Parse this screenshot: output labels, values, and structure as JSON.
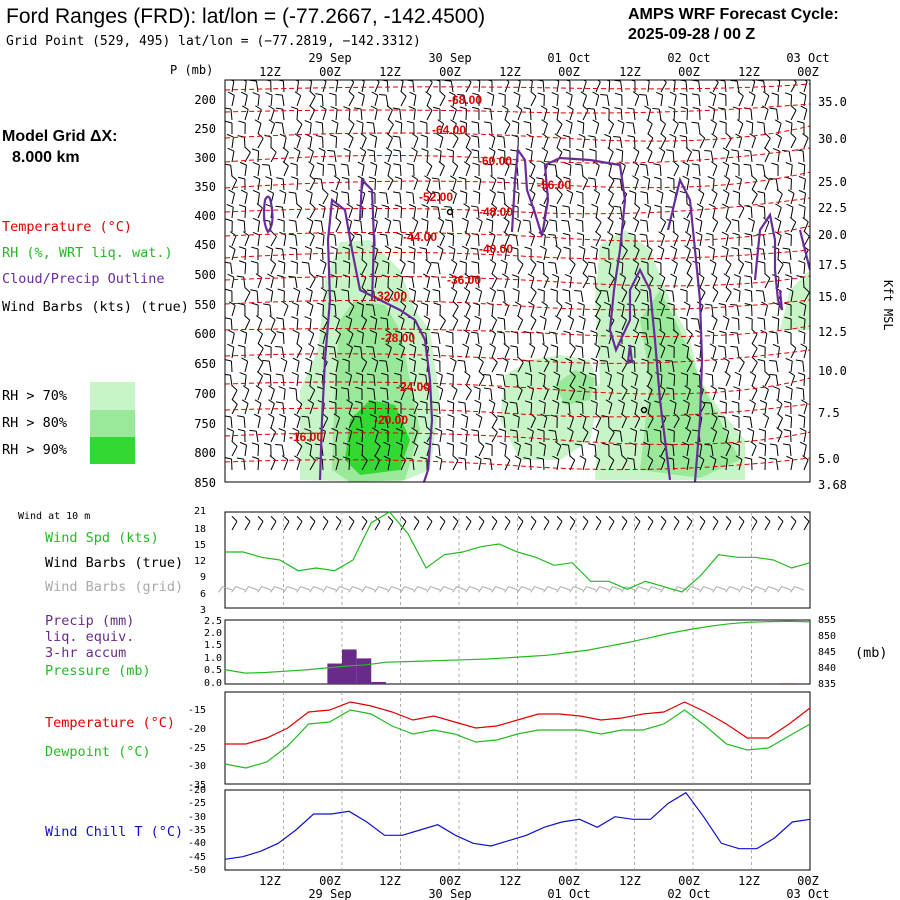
{
  "header": {
    "title": "Ford Ranges (FRD):  lat/lon = (-77.2667, -142.4500)",
    "subtitle": "Grid Point (529, 495) lat/lon = (−77.2819, −142.3312)",
    "cycle_line1": "AMPS WRF Forecast Cycle:",
    "cycle_line2": "2025-09-28 / 00  Z"
  },
  "side": {
    "model_grid_line1": "Model Grid ΔX:",
    "model_grid_line2": "8.000 km",
    "legend_temperature": "Temperature (°C)",
    "legend_rh": "RH (%, WRT liq. wat.)",
    "legend_cloud": "Cloud/Precip Outline",
    "legend_wind": "Wind Barbs (kts) (true)",
    "rh_levels": [
      "RH > 70%",
      "RH > 80%",
      "RH > 90%"
    ],
    "wind10m": "Wind at 10 m",
    "wind_spd": "Wind Spd (kts)",
    "wind_barbs_true": "Wind Barbs (true)",
    "wind_barbs_grid": "Wind Barbs (grid)",
    "precip_lines": [
      "Precip (mm)",
      "liq. equiv.",
      "3-hr accum"
    ],
    "pressure": "Pressure (mb)",
    "temperature": "Temperature (°C)",
    "dewpoint": "Dewpoint (°C)",
    "windchill": "Wind Chill T (°C)",
    "pressure_unit_right": "(mb)",
    "kft_msl": "Kft MSL"
  },
  "colors": {
    "temperature": "#e00000",
    "rh70": "#c8f5c8",
    "rh80": "#9ae89a",
    "rh90": "#33d833",
    "cloud": "#6a2c9a",
    "wind_speed": "#22bb22",
    "precip": "#6a2a8a",
    "pressure": "#22bb22",
    "dewpoint": "#22bb22",
    "windchill": "#1010cc",
    "grid_barbs": "#aaaaaa"
  },
  "time_axis": {
    "hour_labels": [
      "12Z",
      "00Z",
      "12Z",
      "00Z",
      "12Z",
      "00Z",
      "12Z",
      "00Z",
      "12Z",
      "00Z"
    ],
    "date_labels": [
      "29 Sep",
      "30 Sep",
      "01 Oct",
      "02 Oct",
      "03 Oct"
    ],
    "p_label": "P (mb)"
  },
  "chart_data": [
    {
      "type": "heatmap",
      "yaxis_pressure_ticks": [
        "200",
        "250",
        "300",
        "350",
        "400",
        "450",
        "500",
        "550",
        "600",
        "650",
        "700",
        "750",
        "800",
        "850"
      ],
      "yaxis_height_ticks": [
        "35.0",
        "30.0",
        "25.0",
        "22.5",
        "20.0",
        "17.5",
        "15.0",
        "12.5",
        "10.0",
        "7.5",
        "5.0",
        "3.68"
      ],
      "isotherm_labels": [
        "-68.00",
        "-64.00",
        "-60.00",
        "-56.00",
        "-52.00",
        "-48.00",
        "-44.00",
        "-40.00",
        "-36.00",
        "-32.00",
        "-28.00",
        "-24.00",
        "-20.00",
        "-16.00"
      ]
    },
    {
      "type": "line",
      "series": [
        {
          "name": "Wind Spd (kts)",
          "values": [
            13.5,
            13.5,
            12.5,
            12,
            10,
            10.5,
            10,
            12,
            19,
            21,
            17,
            10.5,
            13,
            13.5,
            14.5,
            15,
            13.5,
            12.5,
            11,
            11.5,
            8,
            8,
            6.5,
            8,
            7,
            6,
            9,
            13,
            12.5,
            12.5,
            12,
            10.5,
            11.5
          ]
        }
      ],
      "yticks": [
        "21",
        "18",
        "15",
        "12",
        "9",
        "6",
        "3"
      ],
      "ylim": [
        3,
        21
      ]
    },
    {
      "type": "bar",
      "series": [
        {
          "name": "Precip (mm)",
          "values": [
            0,
            0,
            0,
            0,
            0,
            0,
            0,
            0,
            0,
            0,
            0,
            0,
            0,
            0,
            0,
            0,
            0,
            0,
            0,
            0,
            0,
            0,
            0,
            0,
            0,
            0,
            0
          ]
        }
      ],
      "precip_bars": [
        {
          "hour": 22.5,
          "value": 0.8
        },
        {
          "hour": 25.5,
          "value": 1.35
        },
        {
          "hour": 28.5,
          "value": 1.0
        },
        {
          "hour": 31.5,
          "value": 0.08
        },
        {
          "hour": 115.5,
          "value": 0.03
        }
      ],
      "yticks_left": [
        "2.5",
        "2.0",
        "1.5",
        "1.0",
        "0.5",
        "0.0"
      ],
      "yticks_right": [
        "855",
        "850",
        "845",
        "840",
        "835"
      ],
      "pressure": [
        839.5,
        838.4,
        838.6,
        839,
        839.4,
        840,
        840.6,
        841,
        841.8,
        842,
        842.2,
        842.4,
        842.6,
        842.8,
        843.2,
        843.6,
        844,
        844.8,
        845.6,
        846.8,
        848,
        849.4,
        850.8,
        852,
        853,
        853.8,
        854.3,
        854.5,
        854.6,
        854.4
      ]
    },
    {
      "type": "line",
      "series": [
        {
          "name": "Temperature (°C)",
          "values": [
            -25,
            -25,
            -23.5,
            -21,
            -17,
            -16.5,
            -14.5,
            -15.5,
            -17,
            -19,
            -18,
            -19.5,
            -21,
            -20.5,
            -19,
            -17.5,
            -17.5,
            -18,
            -19,
            -18.5,
            -17.5,
            -17,
            -14.5,
            -17,
            -20,
            -23.5,
            -23.5,
            -20,
            -16
          ]
        },
        {
          "name": "Dewpoint (°C)",
          "values": [
            -30,
            -31,
            -29.5,
            -25.5,
            -20,
            -19.5,
            -16.5,
            -17.5,
            -20.5,
            -22.5,
            -21.5,
            -22.5,
            -24.5,
            -24,
            -22.5,
            -21.5,
            -21.5,
            -21.5,
            -22.5,
            -21.5,
            -21.5,
            -20,
            -16.5,
            -20.5,
            -25,
            -26.5,
            -26,
            -23,
            -20
          ]
        }
      ],
      "yticks": [
        "-15",
        "-20",
        "-25",
        "-30",
        "-35"
      ],
      "ylim": [
        -35,
        -12
      ]
    },
    {
      "type": "line",
      "series": [
        {
          "name": "Wind Chill T (°C)",
          "values": [
            -46,
            -45,
            -43,
            -40,
            -35,
            -29,
            -29,
            -28,
            -32,
            -37,
            -37,
            -35,
            -33,
            -37,
            -40,
            -41,
            -39,
            -37,
            -34,
            -32,
            -31,
            -34,
            -30,
            -31,
            -31,
            -25,
            -21,
            -30,
            -40,
            -42,
            -42,
            -38,
            -32,
            -31
          ]
        }
      ],
      "yticks": [
        "-20",
        "-25",
        "-30",
        "-35",
        "-40",
        "-45",
        "-50"
      ],
      "ylim": [
        -50,
        -20
      ]
    }
  ]
}
